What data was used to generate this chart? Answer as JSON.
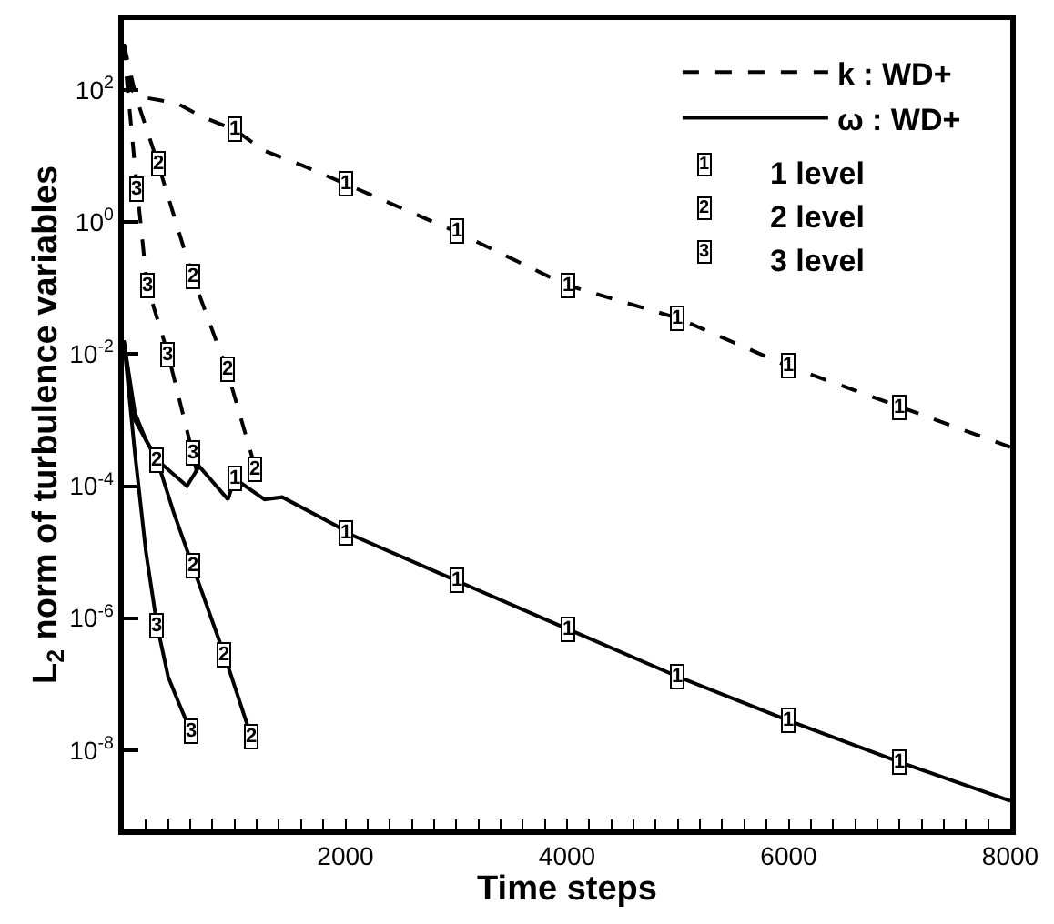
{
  "chart_data": {
    "type": "line",
    "xlabel": "Time steps",
    "ylabel": "L$_{2}$ norm of turbulence variables",
    "log": "y",
    "xlim": [
      0,
      8000
    ],
    "ylim": [
      6.3e-10,
      1150
    ],
    "xticks": [
      {
        "value": 0,
        "label": null
      },
      {
        "value": 200,
        "label": null
      },
      {
        "value": 400,
        "label": null
      },
      {
        "value": 600,
        "label": null
      },
      {
        "value": 800,
        "label": null
      },
      {
        "value": 1000,
        "label": null
      },
      {
        "value": 1200,
        "label": null
      },
      {
        "value": 1400,
        "label": null
      },
      {
        "value": 1600,
        "label": null
      },
      {
        "value": 1800,
        "label": null
      },
      2000,
      {
        "value": 2200,
        "label": null
      },
      {
        "value": 2400,
        "label": null
      },
      {
        "value": 2600,
        "label": null
      },
      {
        "value": 2800,
        "label": null
      },
      {
        "value": 3000,
        "label": null
      },
      {
        "value": 3200,
        "label": null
      },
      {
        "value": 3400,
        "label": null
      },
      {
        "value": 3600,
        "label": null
      },
      {
        "value": 3800,
        "label": null
      },
      4000,
      {
        "value": 4200,
        "label": null
      },
      {
        "value": 4400,
        "label": null
      },
      {
        "value": 4600,
        "label": null
      },
      {
        "value": 4800,
        "label": null
      },
      {
        "value": 5000,
        "label": null
      },
      {
        "value": 5200,
        "label": null
      },
      {
        "value": 5400,
        "label": null
      },
      {
        "value": 5600,
        "label": null
      },
      {
        "value": 5800,
        "label": null
      },
      6000,
      {
        "value": 6200,
        "label": null
      },
      {
        "value": 6400,
        "label": null
      },
      {
        "value": 6600,
        "label": null
      },
      {
        "value": 6800,
        "label": null
      },
      {
        "value": 7000,
        "label": null
      },
      {
        "value": 7200,
        "label": null
      },
      {
        "value": 7400,
        "label": null
      },
      {
        "value": 7600,
        "label": null
      },
      {
        "value": 7800,
        "label": null
      },
      8000
    ],
    "yticks": [
      {
        "value": 100,
        "label": "10$^{2}$"
      },
      {
        "value": 1,
        "label": "10$^{0}$"
      },
      {
        "value": 0.01,
        "label": "10$^{-2}$"
      },
      {
        "value": 0.0001,
        "label": "10$^{-4}$"
      },
      {
        "value": 1e-06,
        "label": "10$^{-6}$"
      },
      {
        "value": 1e-08,
        "label": "10$^{-8}$"
      }
    ],
    "legend": "top right",
    "annotations": [
      "1 level",
      "2 level",
      "3 level",
      {
        "text": "1",
        "x": 1000,
        "y": 25
      },
      {
        "text": "1",
        "x": 2000,
        "y": 3.8
      },
      {
        "text": "1",
        "x": 3000,
        "y": 0.71
      },
      {
        "text": "1",
        "x": 4000,
        "y": 0.11
      },
      {
        "text": "1",
        "x": 5000,
        "y": 0.035
      },
      {
        "text": "1",
        "x": 6000,
        "y": 0.0065
      },
      {
        "text": "1",
        "x": 7000,
        "y": 0.0016
      },
      {
        "text": "1",
        "x": 1000,
        "y": 0.00013
      },
      {
        "text": "1",
        "x": 2000,
        "y": 2e-05
      },
      {
        "text": "1",
        "x": 3000,
        "y": 3.7e-06
      },
      {
        "text": "1",
        "x": 4000,
        "y": 6.9e-07
      },
      {
        "text": "1",
        "x": 5000,
        "y": 1.3e-07
      },
      {
        "text": "1",
        "x": 6000,
        "y": 2.8e-08
      },
      {
        "text": "1",
        "x": 7000,
        "y": 6.6e-09
      },
      {
        "text": "2",
        "x": 310,
        "y": 7.6
      },
      {
        "text": "2",
        "x": 620,
        "y": 0.15
      },
      {
        "text": "2",
        "x": 930,
        "y": 0.0058
      },
      {
        "text": "2",
        "x": 1190,
        "y": 0.00018
      },
      {
        "text": "2",
        "x": 300,
        "y": 0.00025
      },
      {
        "text": "2",
        "x": 620,
        "y": 6.3e-06
      },
      {
        "text": "2",
        "x": 910,
        "y": 2.7e-07
      },
      {
        "text": "2",
        "x": 1150,
        "y": 1.6e-08
      },
      {
        "text": "3",
        "x": 120,
        "y": 3.2
      },
      {
        "text": "3",
        "x": 210,
        "y": 0.11
      },
      {
        "text": "3",
        "x": 400,
        "y": 0.01
      },
      {
        "text": "3",
        "x": 620,
        "y": 0.00032
      },
      {
        "text": "3",
        "x": 300,
        "y": 7.9e-07
      },
      {
        "text": "3",
        "x": 600,
        "y": 2e-08
      }
    ],
    "series": [
      {
        "name": "k : WD+",
        "color": "#000000",
        "line_style": "dashed",
        "x": [
          0,
          70,
          150,
          480,
          700,
          1000,
          1270,
          1620,
          2000,
          3000,
          4000,
          5000,
          6000,
          7000,
          8000
        ],
        "values": [
          500,
          100,
          79,
          63,
          40,
          25,
          12,
          7.1,
          3.8,
          0.71,
          0.11,
          0.035,
          0.0065,
          0.0016,
          0.00039
        ]
      },
      {
        "color": "#000000",
        "line_style": "dashed",
        "x": [
          0,
          110,
          310,
          620,
          930,
          1190
        ],
        "values": [
          500,
          79,
          7.6,
          0.15,
          0.0058,
          0.00018
        ]
      },
      {
        "color": "#000000",
        "line_style": "dashed",
        "x": [
          0,
          30,
          120,
          210,
          400,
          620,
          660
        ],
        "values": [
          500,
          126,
          3.2,
          0.11,
          0.01,
          0.00032,
          0.00016
        ]
      },
      {
        "name": "ω : WD+",
        "color": "#000000",
        "line_style": "solid",
        "x": [
          0,
          100,
          300,
          570,
          680,
          940,
          1000,
          1270,
          1430,
          1920,
          2000,
          3000,
          4000,
          5000,
          6000,
          7000,
          8000
        ],
        "values": [
          0.016,
          0.001,
          0.00025,
          0.0001,
          0.0002,
          6.3e-05,
          0.00013,
          6.3e-05,
          6.8e-05,
          2.5e-05,
          2e-05,
          3.7e-06,
          6.9e-07,
          1.3e-07,
          2.8e-08,
          6.6e-09,
          1.7e-09
        ]
      },
      {
        "color": "#000000",
        "line_style": "solid",
        "x": [
          0,
          100,
          200,
          300,
          450,
          620,
          910,
          1150
        ],
        "values": [
          0.016,
          0.0013,
          0.0005,
          0.00025,
          4e-05,
          6.3e-06,
          2.7e-07,
          1.6e-08
        ]
      },
      {
        "color": "#000000",
        "line_style": "solid",
        "x": [
          0,
          100,
          200,
          300,
          400,
          500,
          600
        ],
        "values": [
          0.016,
          0.00032,
          1e-05,
          7.9e-07,
          1.3e-07,
          5e-08,
          2e-08
        ]
      }
    ]
  }
}
